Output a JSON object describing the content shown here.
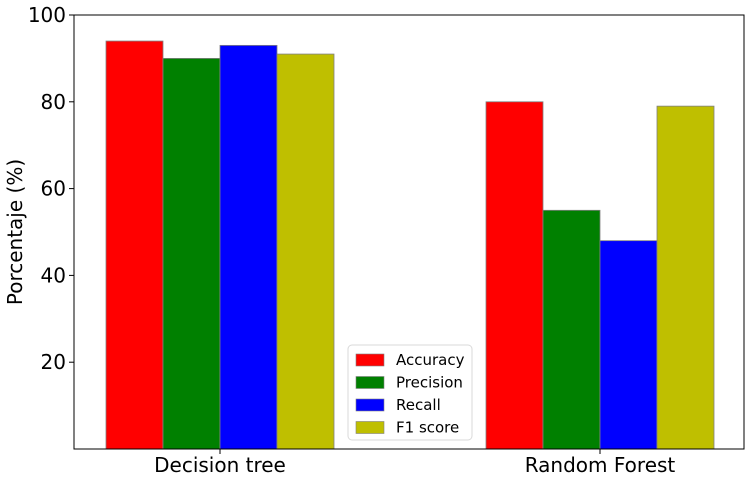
{
  "chart_data": {
    "type": "bar",
    "categories": [
      "Decision tree",
      "Random Forest"
    ],
    "series": [
      {
        "name": "Accuracy",
        "color": "#ff0000",
        "values": [
          94,
          80
        ]
      },
      {
        "name": "Precision",
        "color": "#008000",
        "values": [
          90,
          55
        ]
      },
      {
        "name": "Recall",
        "color": "#0000ff",
        "values": [
          93,
          48
        ]
      },
      {
        "name": "F1 score",
        "color": "#bfbf00",
        "values": [
          91,
          79
        ]
      }
    ],
    "ylabel": "Porcentaje (%)",
    "xlabel": "",
    "ylim": [
      0,
      100
    ],
    "yticks": [
      20,
      40,
      60,
      80,
      100
    ],
    "grid": false,
    "legend_position": "lower-center"
  }
}
